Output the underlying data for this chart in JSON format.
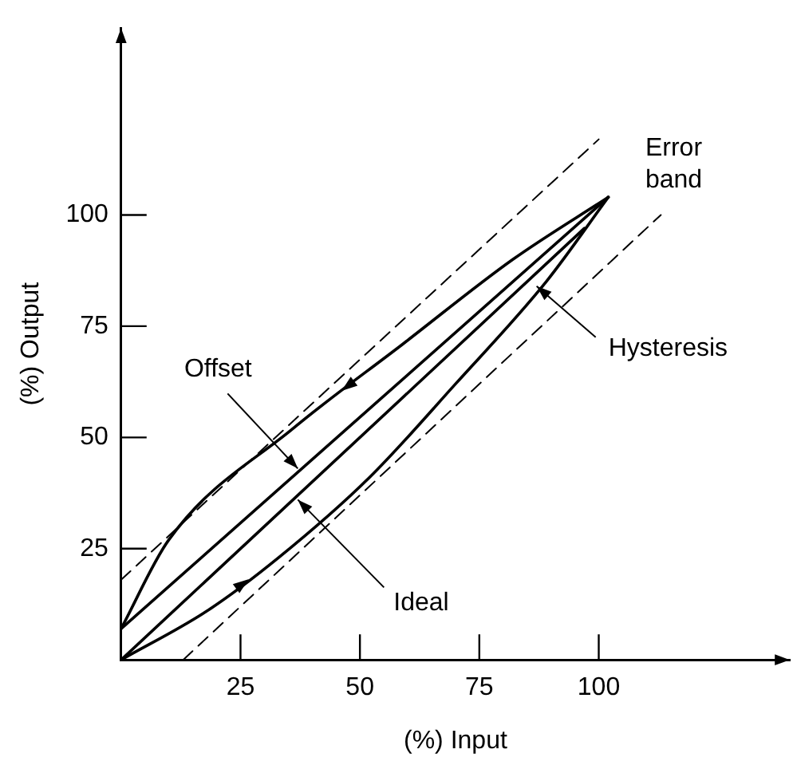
{
  "chart_data": {
    "type": "line",
    "xlabel": "(%) Input",
    "ylabel": "(%) Output",
    "xlim": [
      0,
      140
    ],
    "ylim": [
      0,
      142
    ],
    "xticks": [
      25,
      50,
      75,
      100
    ],
    "yticks": [
      25,
      50,
      75,
      100
    ],
    "grid": false,
    "legend": false,
    "marker": "none",
    "series": [
      {
        "color": "#000000",
        "line_style": "dashed",
        "x": [
          0,
          100
        ],
        "values": [
          18,
          117
        ]
      },
      {
        "color": "#000000",
        "line_style": "dashed",
        "x": [
          13,
          113
        ],
        "values": [
          0,
          100
        ]
      },
      {
        "color": "#000000",
        "line_style": "solid",
        "x": [
          0,
          102
        ],
        "values": [
          7,
          104
        ]
      },
      {
        "color": "#000000",
        "line_style": "solid",
        "x": [
          0,
          97
        ],
        "values": [
          0,
          97
        ]
      },
      {
        "color": "#000000",
        "line_style": "solid",
        "x": [
          0,
          10,
          36,
          59,
          82,
          102
        ],
        "values": [
          7,
          27,
          52,
          71,
          90,
          104
        ]
      },
      {
        "color": "#000000",
        "line_style": "solid",
        "x": [
          0,
          18,
          33,
          52,
          70,
          89,
          102
        ],
        "values": [
          0,
          11,
          23,
          41,
          62,
          85,
          104
        ]
      }
    ],
    "annotations": [
      {
        "text": "Error band",
        "x": 100,
        "y": 117
      },
      {
        "text": "Hysteresis",
        "x": 87,
        "y": 84
      },
      {
        "text": "Offset",
        "x": 37,
        "y": 43
      },
      {
        "text": "Ideal",
        "x": 37,
        "y": 36
      }
    ]
  }
}
